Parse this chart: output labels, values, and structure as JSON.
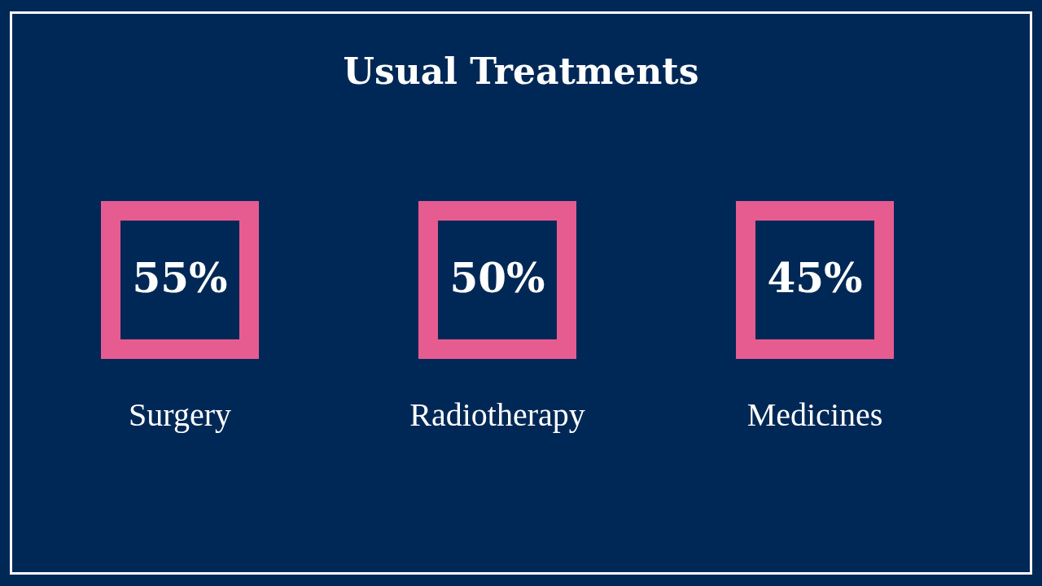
{
  "chart_data": {
    "type": "other",
    "title": "Usual Treatments",
    "categories": [
      "Surgery",
      "Radiotherapy",
      "Medicines"
    ],
    "values": [
      55,
      50,
      45
    ],
    "value_labels": [
      "55%",
      "50%",
      "45%"
    ],
    "colors": [
      "#e65c90",
      "#e65c90",
      "#e65c90"
    ]
  }
}
